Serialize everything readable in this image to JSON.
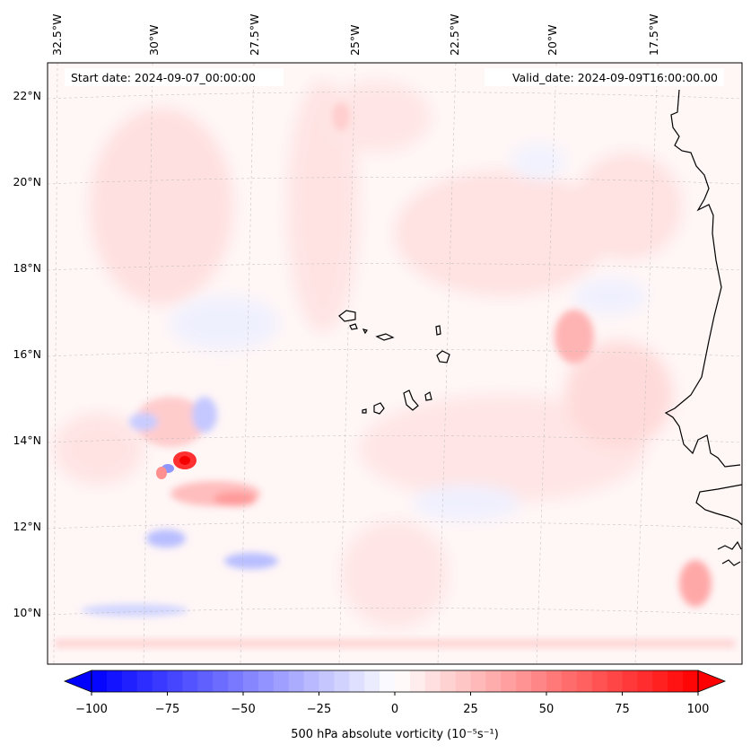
{
  "map": {
    "start_label": "Start date: 2024-09-07_00:00:00",
    "valid_label": "Valid_date: 2024-09-09T16:00:00.00",
    "lon_labels": [
      "32.5°W",
      "30°W",
      "27.5°W",
      "25°W",
      "22.5°W",
      "20°W",
      "17.5°W"
    ],
    "lat_labels": [
      "22°N",
      "20°N",
      "18°N",
      "16°N",
      "14°N",
      "12°N",
      "10°N"
    ],
    "extent": {
      "lon_min": -33.0,
      "lon_max": -15.8,
      "lat_min": 8.9,
      "lat_max": 22.8
    },
    "field_name": "500 hPa absolute vorticity",
    "features": [
      {
        "name": "vorticity-max-west",
        "lon": -30.3,
        "lat": 13.6,
        "value": 95,
        "sign": "positive"
      },
      {
        "name": "vorticity-min-west",
        "lon": -30.5,
        "lat": 13.2,
        "value": -40,
        "sign": "negative"
      },
      {
        "name": "vorticity-band-12n",
        "lon": -28.8,
        "lat": 12.7,
        "value": 30,
        "sign": "positive"
      },
      {
        "name": "vorticity-coast-17n",
        "lon": -19.6,
        "lat": 16.5,
        "value": 25,
        "sign": "positive"
      },
      {
        "name": "vorticity-coast-11n",
        "lon": -16.9,
        "lat": 10.8,
        "value": 35,
        "sign": "positive"
      }
    ]
  },
  "colorbar": {
    "label": "500 hPa absolute vorticity (10⁻⁵s⁻¹)",
    "min": -100,
    "max": 100,
    "tick_values": [
      -100,
      -75,
      -50,
      -25,
      0,
      25,
      50,
      75,
      100
    ],
    "tick_labels": [
      "−100",
      "−75",
      "−50",
      "−25",
      "0",
      "25",
      "50",
      "75",
      "100"
    ],
    "colors": {
      "negative": "#0000ff",
      "neutral": "#ffffff",
      "positive": "#ff0000"
    }
  }
}
